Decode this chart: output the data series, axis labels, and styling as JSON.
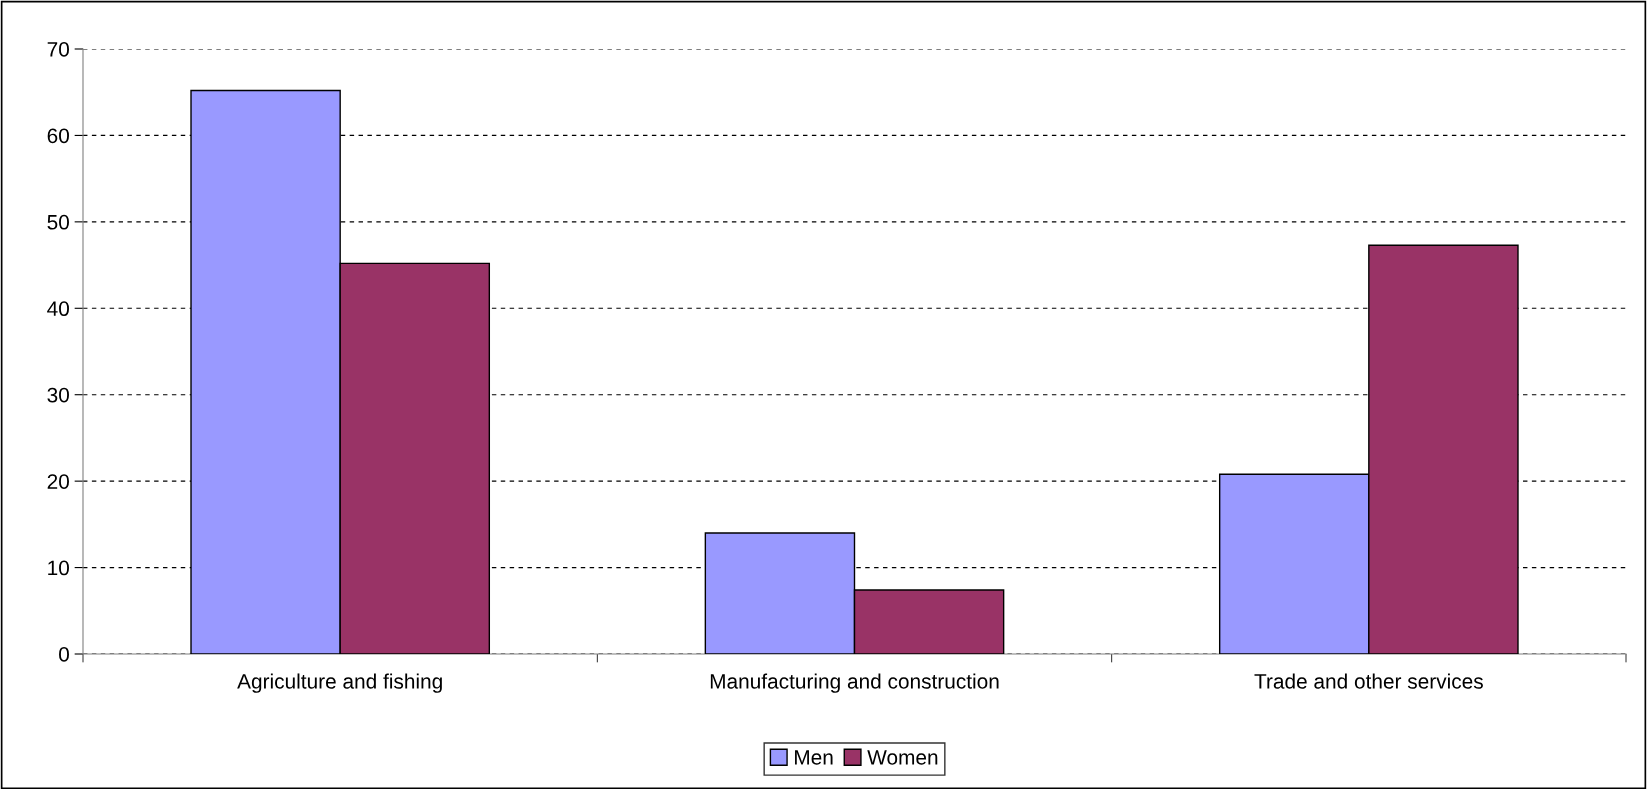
{
  "chart_data": {
    "type": "bar",
    "categories": [
      "Agriculture and fishing",
      "Manufacturing and construction",
      "Trade and other services"
    ],
    "series": [
      {
        "name": "Men",
        "color": "#9999ff",
        "values": [
          65.2,
          14.0,
          20.8
        ]
      },
      {
        "name": "Women",
        "color": "#993366",
        "values": [
          45.2,
          7.4,
          47.3
        ]
      }
    ],
    "ylim": [
      0,
      70
    ],
    "yticks": [
      0,
      10,
      20,
      30,
      40,
      50,
      60,
      70
    ],
    "grid": "y",
    "legend": "bottom"
  }
}
